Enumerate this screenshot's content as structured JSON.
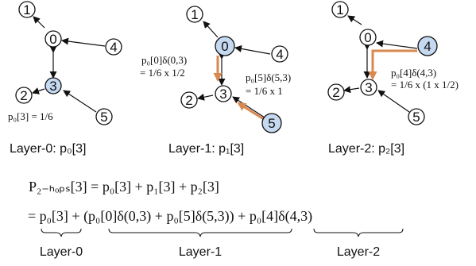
{
  "panels": [
    {
      "nodes": [
        {
          "label": "1",
          "highlight": false
        },
        {
          "label": "0",
          "highlight": false
        },
        {
          "label": "4",
          "highlight": false
        },
        {
          "label": "3",
          "highlight": true
        },
        {
          "label": "2",
          "highlight": false
        },
        {
          "label": "5",
          "highlight": false
        }
      ],
      "annotations": [
        "p₀[3]  =  1/6"
      ],
      "caption": "Layer-0: p₀[3]"
    },
    {
      "nodes": [
        {
          "label": "1",
          "highlight": false
        },
        {
          "label": "0",
          "highlight": true
        },
        {
          "label": "4",
          "highlight": false
        },
        {
          "label": "3",
          "highlight": false
        },
        {
          "label": "2",
          "highlight": false
        },
        {
          "label": "5",
          "highlight": true
        }
      ],
      "annotations": [
        "p₀[0]δ(0,3)",
        "= 1/6 x 1/2",
        "p₀[5]δ(5,3)",
        "= 1/6 x 1"
      ],
      "caption": "Layer-1: p₁[3]"
    },
    {
      "nodes": [
        {
          "label": "1",
          "highlight": false
        },
        {
          "label": "0",
          "highlight": false
        },
        {
          "label": "4",
          "highlight": true
        },
        {
          "label": "3",
          "highlight": false
        },
        {
          "label": "2",
          "highlight": false
        },
        {
          "label": "5",
          "highlight": false
        }
      ],
      "annotations": [
        "p₀[4]δ(4,3)",
        "= 1/6 x (1 x 1/2)"
      ],
      "caption": "Layer-2: p₂[3]"
    }
  ],
  "equation": {
    "line1": "P₂₋ₕₒₚₛ[3] = p₀[3] + p₁[3] + p₂[3]",
    "line2": "= p₀[3] + (p₀[0]δ(0,3) + p₀[5]δ(5,3)) + p₀[4]δ(4,3)",
    "braces": [
      "Layer-0",
      "Layer-1",
      "Layer-2"
    ]
  },
  "colors": {
    "node_fill": "#ffffff",
    "node_highlight": "#c5d9f1",
    "stroke": "#111111",
    "flow_arrow": "#d9894f"
  }
}
